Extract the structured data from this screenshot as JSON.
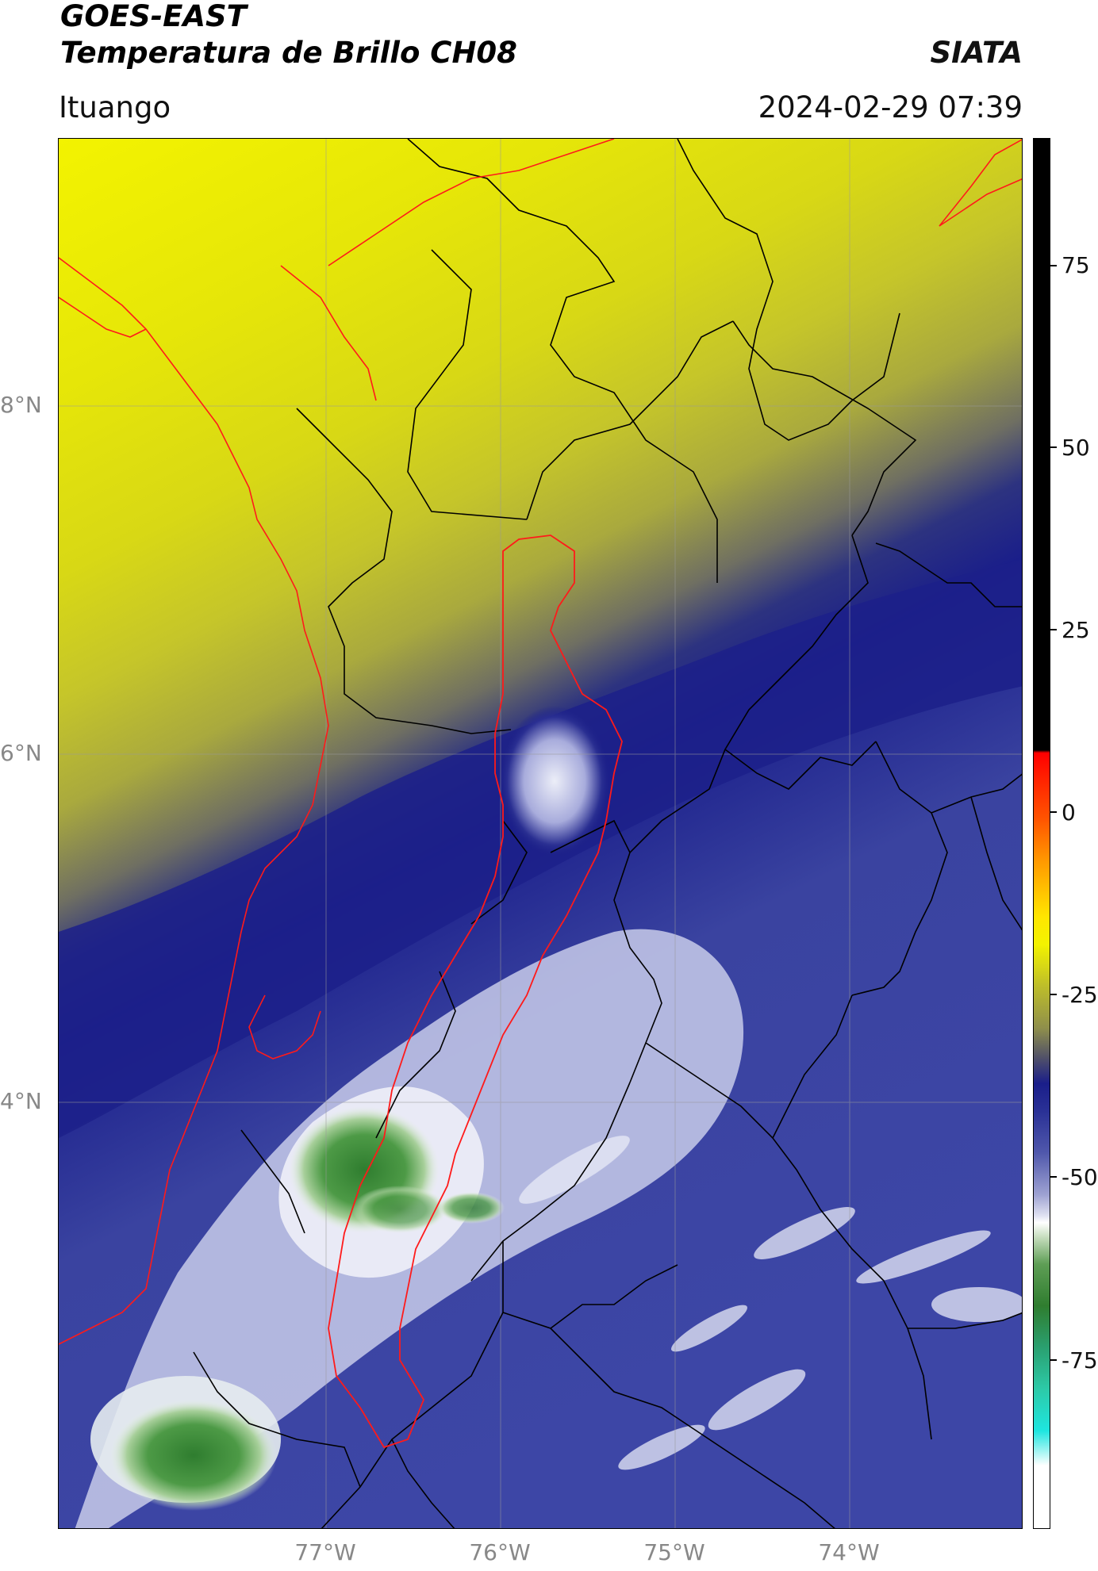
{
  "header": {
    "title_line1": "GOES-EAST",
    "title_line2": "Temperatura de Brillo CH08",
    "brand": "SIATA",
    "location": "Ituango",
    "datetime": "2024-02-29 07:39"
  },
  "map": {
    "lat_labels": [
      "8°N",
      "6°N",
      "4°N"
    ],
    "lon_labels": [
      "77°W",
      "76°W",
      "75°W",
      "74°W"
    ],
    "border_colors": {
      "coastline": "#ff1a1a",
      "departments": "#000000"
    }
  },
  "colorbar": {
    "tick_labels": [
      "75",
      "50",
      "25",
      "0",
      "-25",
      "-50",
      "-75"
    ]
  }
}
